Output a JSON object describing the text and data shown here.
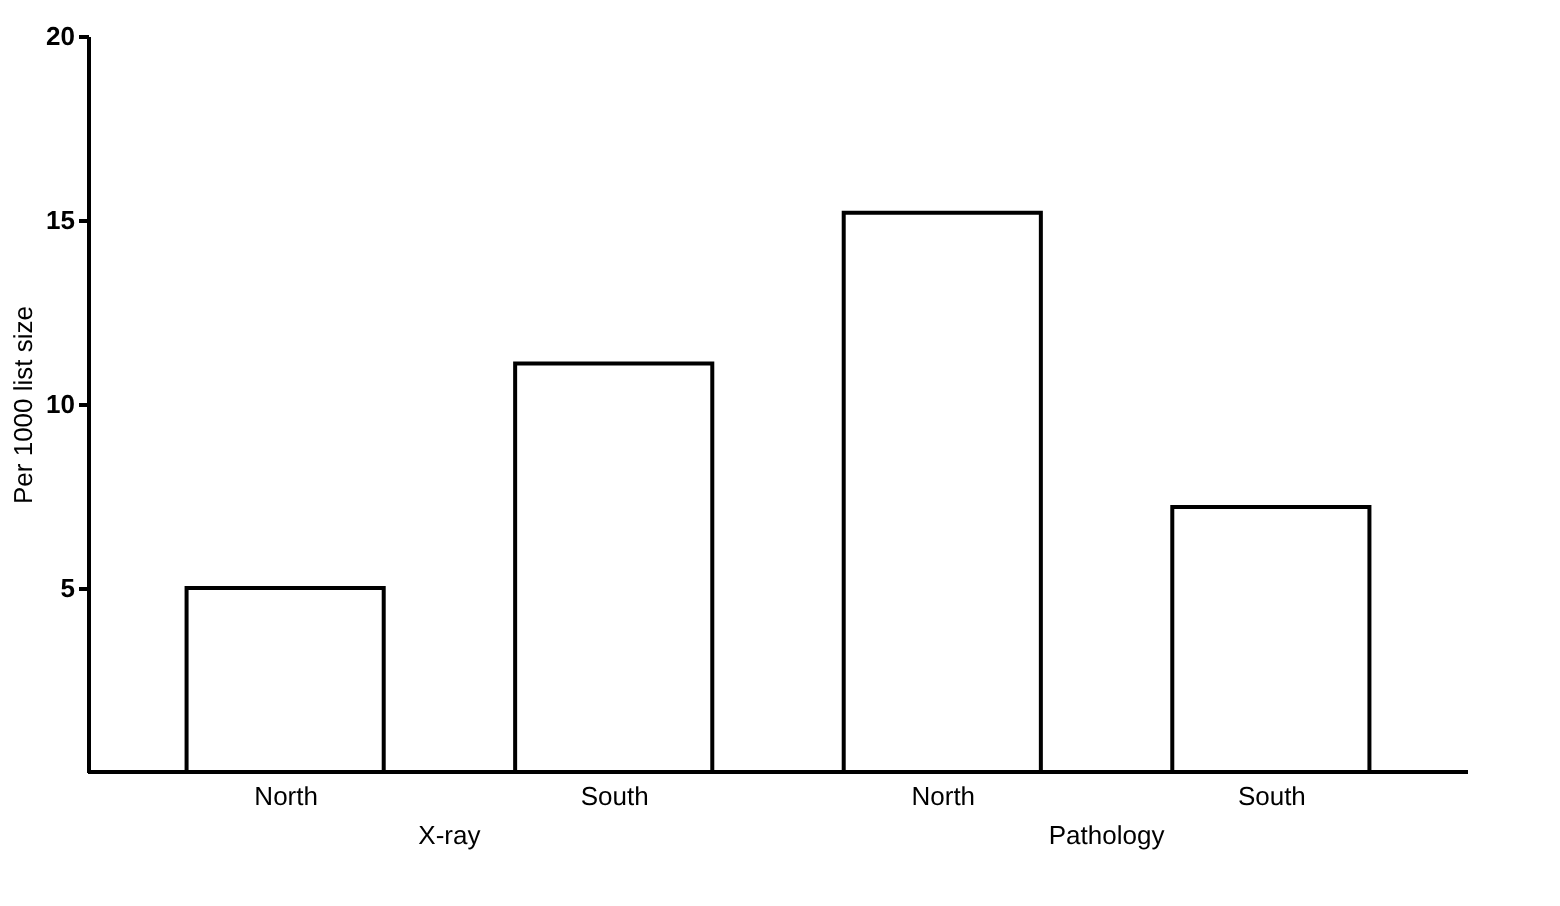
{
  "chart_data": {
    "type": "bar",
    "categories": [
      "North",
      "South",
      "North",
      "South"
    ],
    "values": [
      5.0,
      11.1,
      15.2,
      7.2
    ],
    "colors": [
      "#ffffff",
      "#ffffff",
      "#ffffff",
      "#ffffff"
    ],
    "ylabel": "Per 1000 list size",
    "ylim": [
      0,
      20
    ],
    "yticks": [
      5,
      10,
      15,
      20
    ],
    "annotations": [
      "X-ray",
      "Pathology"
    ],
    "grid": false
  }
}
